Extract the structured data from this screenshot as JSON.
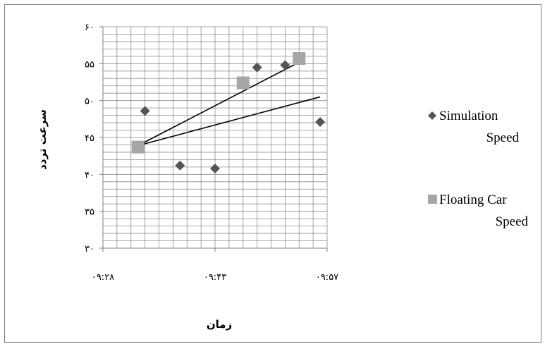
{
  "chart_data": {
    "type": "scatter",
    "xlabel": "زمان",
    "ylabel": "سرعت تردد",
    "x_ticks": [
      "۰۹:۲۸",
      "۰۹:۴۳",
      "۰۹:۵۷"
    ],
    "y_ticks": [
      "۳۰",
      "۳۵",
      "۴۰",
      "۴۵",
      "۵۰",
      "۵۵",
      "۶۰"
    ],
    "ylim": [
      30,
      60
    ],
    "x_range_minutes": [
      568,
      600
    ],
    "grid": true,
    "legend_position": "right",
    "series": [
      {
        "name": "Simulation Speed",
        "marker": "diamond",
        "color": "#555555",
        "points": [
          {
            "x": "09:34",
            "y": 48.6
          },
          {
            "x": "09:39",
            "y": 41.2
          },
          {
            "x": "09:44",
            "y": 40.8
          },
          {
            "x": "09:50",
            "y": 54.5
          },
          {
            "x": "09:54",
            "y": 54.8
          },
          {
            "x": "09:59",
            "y": 47.1
          }
        ]
      },
      {
        "name": "Floating Car Speed",
        "marker": "square",
        "color": "#a6a6a6",
        "points": [
          {
            "x": "09:33",
            "y": 43.7
          },
          {
            "x": "09:48",
            "y": 52.4
          },
          {
            "x": "09:56",
            "y": 55.7
          }
        ]
      }
    ],
    "trendlines": [
      {
        "from": {
          "x": "09:33",
          "y": 43.9
        },
        "to": {
          "x": "09:56",
          "y": 55.2
        }
      },
      {
        "from": {
          "x": "09:33",
          "y": 43.9
        },
        "to": {
          "x": "09:59",
          "y": 50.5
        }
      }
    ]
  }
}
